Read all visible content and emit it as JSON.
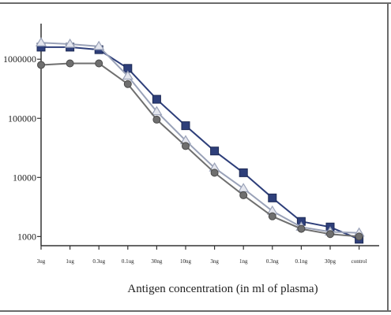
{
  "chart_data": {
    "type": "line",
    "title": "",
    "xlabel": "Antigen concentration (in ml of plasma)",
    "ylabel": "",
    "y_scale": "log",
    "ylim": [
      700,
      4000000
    ],
    "y_ticks": [
      {
        "value": 1000,
        "label": "1000"
      },
      {
        "value": 10000,
        "label": "10000"
      },
      {
        "value": 100000,
        "label": "100000"
      },
      {
        "value": 1000000,
        "label": "1000000"
      }
    ],
    "categories": [
      "3ug",
      "1ug",
      "0.3ug",
      "0.1ug",
      "30ng",
      "10ng",
      "3ng",
      "1ng",
      "0.3ng",
      "0.1ng",
      "30pg",
      "control"
    ],
    "grid": false,
    "legend": "none",
    "series": [
      {
        "marker": "square",
        "color": "#2e3f7a",
        "values": [
          1600000,
          1600000,
          1450000,
          700000,
          210000,
          75000,
          28000,
          12000,
          4500,
          1800,
          1450,
          900
        ]
      },
      {
        "marker": "triangle",
        "color": "#9aa2b8",
        "values": [
          1900000,
          1800000,
          1650000,
          520000,
          130000,
          42000,
          14500,
          6500,
          2700,
          1450,
          1200,
          1150
        ]
      },
      {
        "marker": "circle",
        "color": "#6f6f6f",
        "values": [
          800000,
          850000,
          850000,
          380000,
          95000,
          34000,
          12000,
          5000,
          2200,
          1350,
          1100,
          1000
        ]
      }
    ]
  }
}
